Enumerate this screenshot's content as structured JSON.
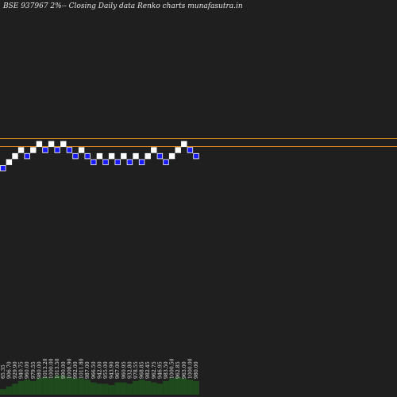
{
  "chart_data": {
    "type": "renko",
    "title": "BSE 937967 2%--  Closing Daily data  Renko  charts munafasutra.in",
    "xlabel": "",
    "ylabel": "",
    "grid": false,
    "legend": "none",
    "brick_size_pct": 2,
    "bricks": [
      {
        "level": 0,
        "dir": "down"
      },
      {
        "level": 1,
        "dir": "up"
      },
      {
        "level": 2,
        "dir": "up"
      },
      {
        "level": 3,
        "dir": "up"
      },
      {
        "level": 2,
        "dir": "down"
      },
      {
        "level": 3,
        "dir": "up"
      },
      {
        "level": 4,
        "dir": "up"
      },
      {
        "level": 3,
        "dir": "down"
      },
      {
        "level": 4,
        "dir": "up"
      },
      {
        "level": 3,
        "dir": "down"
      },
      {
        "level": 4,
        "dir": "up"
      },
      {
        "level": 3,
        "dir": "down"
      },
      {
        "level": 2,
        "dir": "down"
      },
      {
        "level": 3,
        "dir": "up"
      },
      {
        "level": 2,
        "dir": "down"
      },
      {
        "level": 1,
        "dir": "down"
      },
      {
        "level": 2,
        "dir": "up"
      },
      {
        "level": 1,
        "dir": "down"
      },
      {
        "level": 2,
        "dir": "up"
      },
      {
        "level": 1,
        "dir": "down"
      },
      {
        "level": 2,
        "dir": "up"
      },
      {
        "level": 1,
        "dir": "down"
      },
      {
        "level": 2,
        "dir": "up"
      },
      {
        "level": 1,
        "dir": "down"
      },
      {
        "level": 2,
        "dir": "up"
      },
      {
        "level": 3,
        "dir": "up"
      },
      {
        "level": 2,
        "dir": "down"
      },
      {
        "level": 1,
        "dir": "down"
      },
      {
        "level": 2,
        "dir": "up"
      },
      {
        "level": 3,
        "dir": "up"
      },
      {
        "level": 4,
        "dir": "up"
      },
      {
        "level": 3,
        "dir": "down"
      },
      {
        "level": 2,
        "dir": "down"
      }
    ],
    "x_labels": [
      "65.35",
      "906.70",
      "929.90",
      "940.75",
      "960.00",
      "979.55",
      "980.00",
      "1013.20",
      "1000.00",
      "1013.50",
      "990.00",
      "1008.90",
      "992.00",
      "1011.80",
      "987.00",
      "966.50",
      "942.00",
      "955.00",
      "943.90",
      "967.00",
      "960.95",
      "932.80",
      "978.55",
      "968.85",
      "982.45",
      "962.75",
      "946.95",
      "983.50",
      "1000.50",
      "962.85",
      "963.00",
      "1000.00",
      "980.00"
    ],
    "reference_lines": [
      {
        "name": "upper",
        "level": 4.4,
        "color": "#d4821f"
      },
      {
        "name": "lower",
        "level": 3.1,
        "color": "#d4821f"
      }
    ],
    "volume": [
      4,
      6,
      8,
      10,
      11,
      10,
      12,
      13,
      12,
      14,
      14,
      13,
      12,
      12,
      11,
      9,
      8,
      8,
      7,
      9,
      9,
      8,
      10,
      11,
      10,
      9,
      8,
      10,
      12,
      13,
      12,
      11,
      10
    ],
    "colors": {
      "background": "#1f1f1f",
      "up_fill": "#ffffff",
      "down_fill": "#1a1aff",
      "down_stroke": "#ffffff",
      "volume": "#1e4a1e",
      "text": "#e6e6e6"
    }
  }
}
